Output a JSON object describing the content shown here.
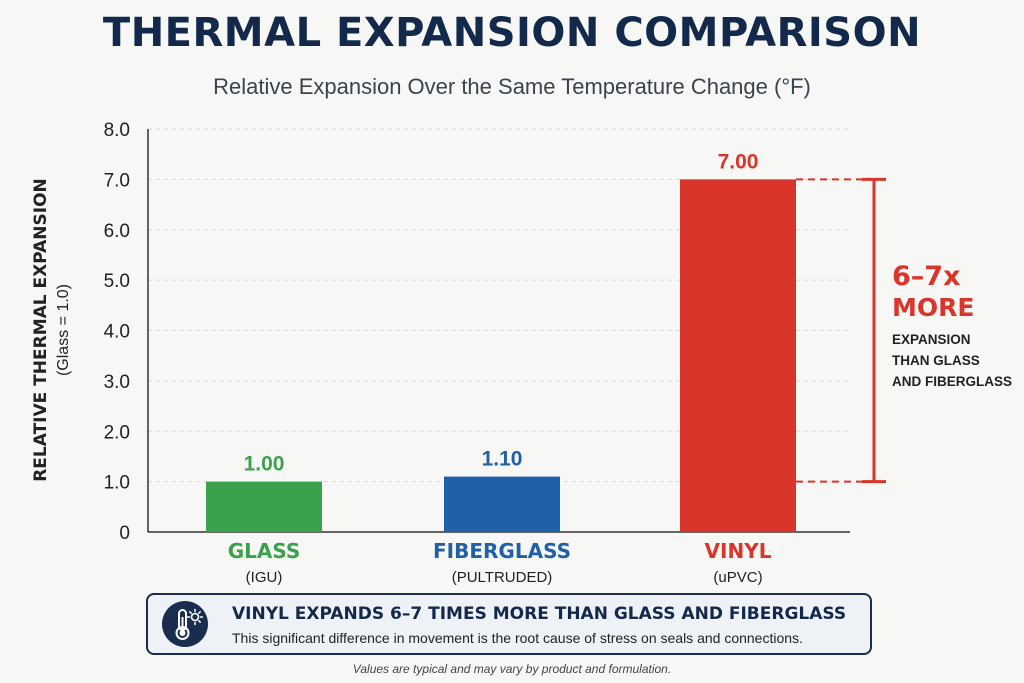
{
  "chart_data": {
    "type": "bar",
    "title": "THERMAL EXPANSION COMPARISON",
    "subtitle": "Relative Expansion Over the Same Temperature Change (°F)",
    "ylabel": "RELATIVE THERMAL EXPANSION",
    "ylabel_sub": "(Glass = 1.0)",
    "ylim": [
      0,
      8
    ],
    "yticks": [
      "0",
      "1.0",
      "2.0",
      "3.0",
      "4.0",
      "5.0",
      "6.0",
      "7.0",
      "8.0"
    ],
    "grid": true,
    "categories": [
      "GLASS",
      "FIBERGLASS",
      "VINYL"
    ],
    "category_sublabels": [
      "(IGU)",
      "(PULTRUDED)",
      "(uPVC)"
    ],
    "values": [
      1.0,
      1.1,
      7.0
    ],
    "value_labels": [
      "1.00",
      "1.10",
      "7.00"
    ],
    "colors": [
      "#3aa24b",
      "#2060a8",
      "#d9352a"
    ],
    "annotation": {
      "big": "6–7x",
      "big2": "MORE",
      "lines": [
        "EXPANSION",
        "THAN GLASS",
        "AND FIBERGLASS"
      ],
      "color": "#d9352a",
      "from": 1.0,
      "to": 7.0
    }
  },
  "callout": {
    "icon": "thermometer-sun-icon",
    "headline": "VINYL EXPANDS 6–7 TIMES MORE THAN GLASS AND FIBERGLASS",
    "body": "This significant difference in movement is the root cause of stress on seals and connections."
  },
  "footnote": "Values are typical and may vary by product and formulation."
}
